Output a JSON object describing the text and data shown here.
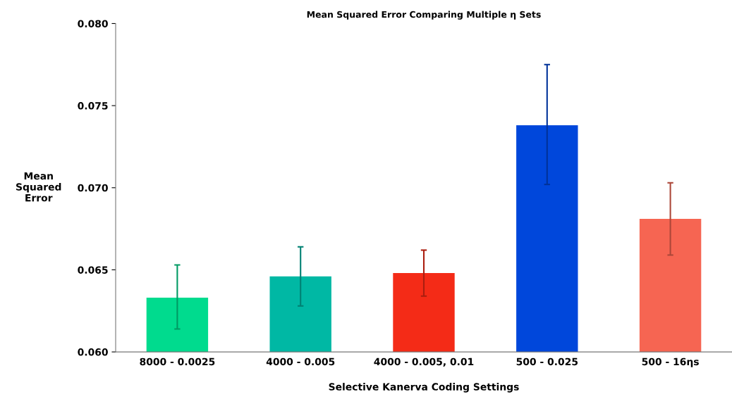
{
  "chart_data": {
    "type": "bar",
    "title": "Mean Squared Error Comparing Multiple η Sets",
    "xlabel": "Selective Kanerva Coding Settings",
    "ylabel": "Mean\nSquared\nError",
    "categories": [
      "8000 - 0.0025",
      "4000 - 0.005",
      "4000 - 0.005, 0.01",
      "500 - 0.025",
      "500 - 16ηs"
    ],
    "values": [
      0.0633,
      0.0646,
      0.0648,
      0.0738,
      0.0681
    ],
    "colors": [
      "#00db8e",
      "#00b8a4",
      "#f42b17",
      "#0047db",
      "#f66552"
    ],
    "errors": [
      [
        0.0614,
        0.0653
      ],
      [
        0.0628,
        0.0664
      ],
      [
        0.0634,
        0.0662
      ],
      [
        0.0702,
        0.0775
      ],
      [
        0.0659,
        0.0703
      ]
    ],
    "ylim": [
      0.06,
      0.08
    ],
    "yticks": [
      {
        "value": 0.06,
        "label": "0.060"
      },
      {
        "value": 0.065,
        "label": "0.065"
      },
      {
        "value": 0.07,
        "label": "0.070"
      },
      {
        "value": 0.075,
        "label": "0.075"
      },
      {
        "value": 0.08,
        "label": "0.080"
      }
    ],
    "grid": false
  }
}
